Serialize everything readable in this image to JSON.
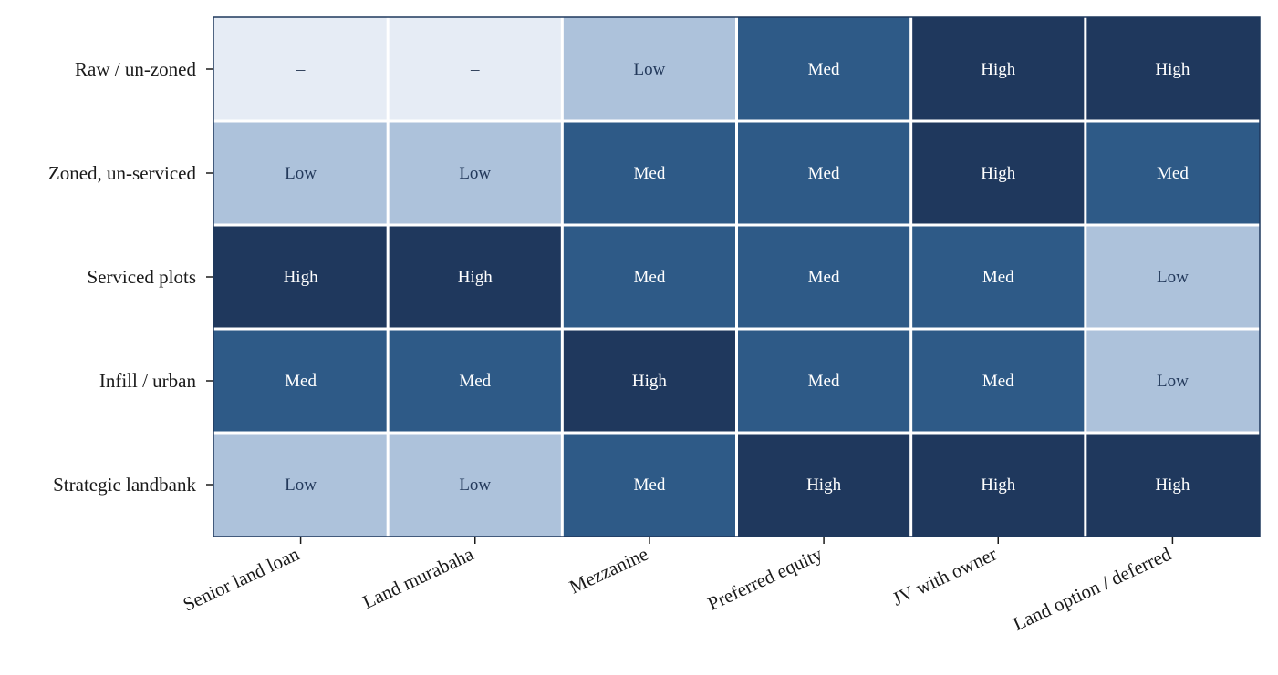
{
  "chart_data": {
    "type": "heatmap",
    "title": "",
    "xlabel": "",
    "ylabel": "",
    "rows": [
      "Raw / un-zoned",
      "Zoned, un-serviced",
      "Serviced plots",
      "Infill / urban",
      "Strategic landbank"
    ],
    "columns": [
      "Senior land loan",
      "Land murabaha",
      "Mezzanine",
      "Preferred equity",
      "JV with owner",
      "Land option / deferred"
    ],
    "cells": [
      [
        "–",
        "–",
        "Low",
        "Med",
        "High",
        "High"
      ],
      [
        "Low",
        "Low",
        "Med",
        "Med",
        "High",
        "Med"
      ],
      [
        "High",
        "High",
        "Med",
        "Med",
        "Med",
        "Low"
      ],
      [
        "Med",
        "Med",
        "High",
        "Med",
        "Med",
        "Low"
      ],
      [
        "Low",
        "Low",
        "Med",
        "High",
        "High",
        "High"
      ]
    ],
    "levels": [
      "–",
      "Low",
      "Med",
      "High"
    ],
    "level_colors": {
      "–": "#e6ecf5",
      "Low": "#adc2db",
      "Med": "#2e5a87",
      "High": "#1f385d"
    },
    "text_colors": {
      "–": "#2a3a55",
      "Low": "#23395b",
      "Med": "#ffffff",
      "High": "#ffffff"
    },
    "grid_color": "#ffffff",
    "frame_color": "#1f385d",
    "legend": "none"
  }
}
